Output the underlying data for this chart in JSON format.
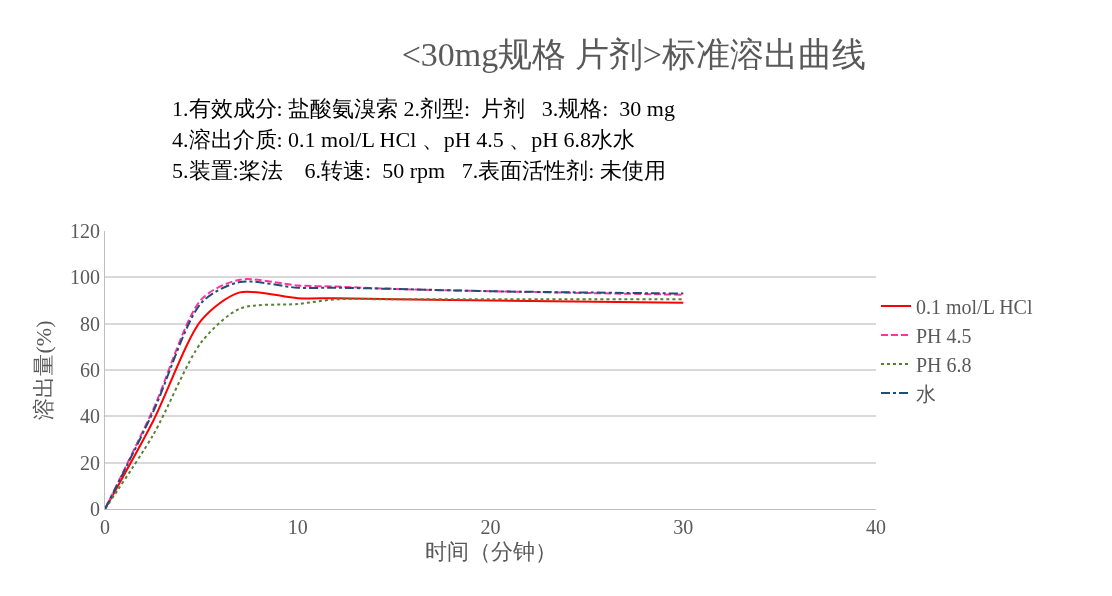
{
  "chart_data": {
    "type": "line",
    "title": "<30mg规格 片剂>标准溶出曲线",
    "xlabel": "时间（分钟）",
    "ylabel": "溶出量(%)",
    "annotations": [
      "1.有效成分: 盐酸氨溴索 2.剂型:  片剂   3.规格:  30 mg",
      "4.溶出介质: 0.1 mol/L HCl 、pH 4.5 、pH 6.8水水",
      "5.装置:桨法    6.转速:  50 rpm   7.表面活性剂: 未使用"
    ],
    "x": [
      0,
      2.5,
      5,
      7,
      10,
      12,
      15,
      20,
      30
    ],
    "series": [
      {
        "name": "0.1 mol/L HCl",
        "color": "#ff0000",
        "line_style": "solid",
        "values": [
          0,
          38,
          81.5,
          93.5,
          91,
          91,
          90.5,
          90,
          89
        ]
      },
      {
        "name": "PH 4.5",
        "color": "#ff3399",
        "line_style": "dashed",
        "values": [
          0,
          43,
          90.5,
          99,
          96.5,
          96,
          95,
          94,
          92.5
        ]
      },
      {
        "name": "PH 6.8",
        "color": "#548235",
        "line_style": "dotted",
        "values": [
          0,
          32,
          72,
          86.5,
          88.5,
          90.5,
          90.5,
          90.5,
          90.5
        ]
      },
      {
        "name": "水",
        "color": "#1f4e79",
        "line_style": "dashdot",
        "values": [
          0,
          42,
          89,
          98,
          95.5,
          95.5,
          95,
          94,
          93
        ]
      }
    ],
    "xlim": [
      0,
      40
    ],
    "xticks": [
      0,
      10,
      20,
      30,
      40
    ],
    "ylim": [
      0,
      120
    ],
    "yticks": [
      0,
      20,
      40,
      60,
      80,
      100,
      120
    ],
    "grid": "y",
    "legend": "right",
    "marker": "none"
  }
}
